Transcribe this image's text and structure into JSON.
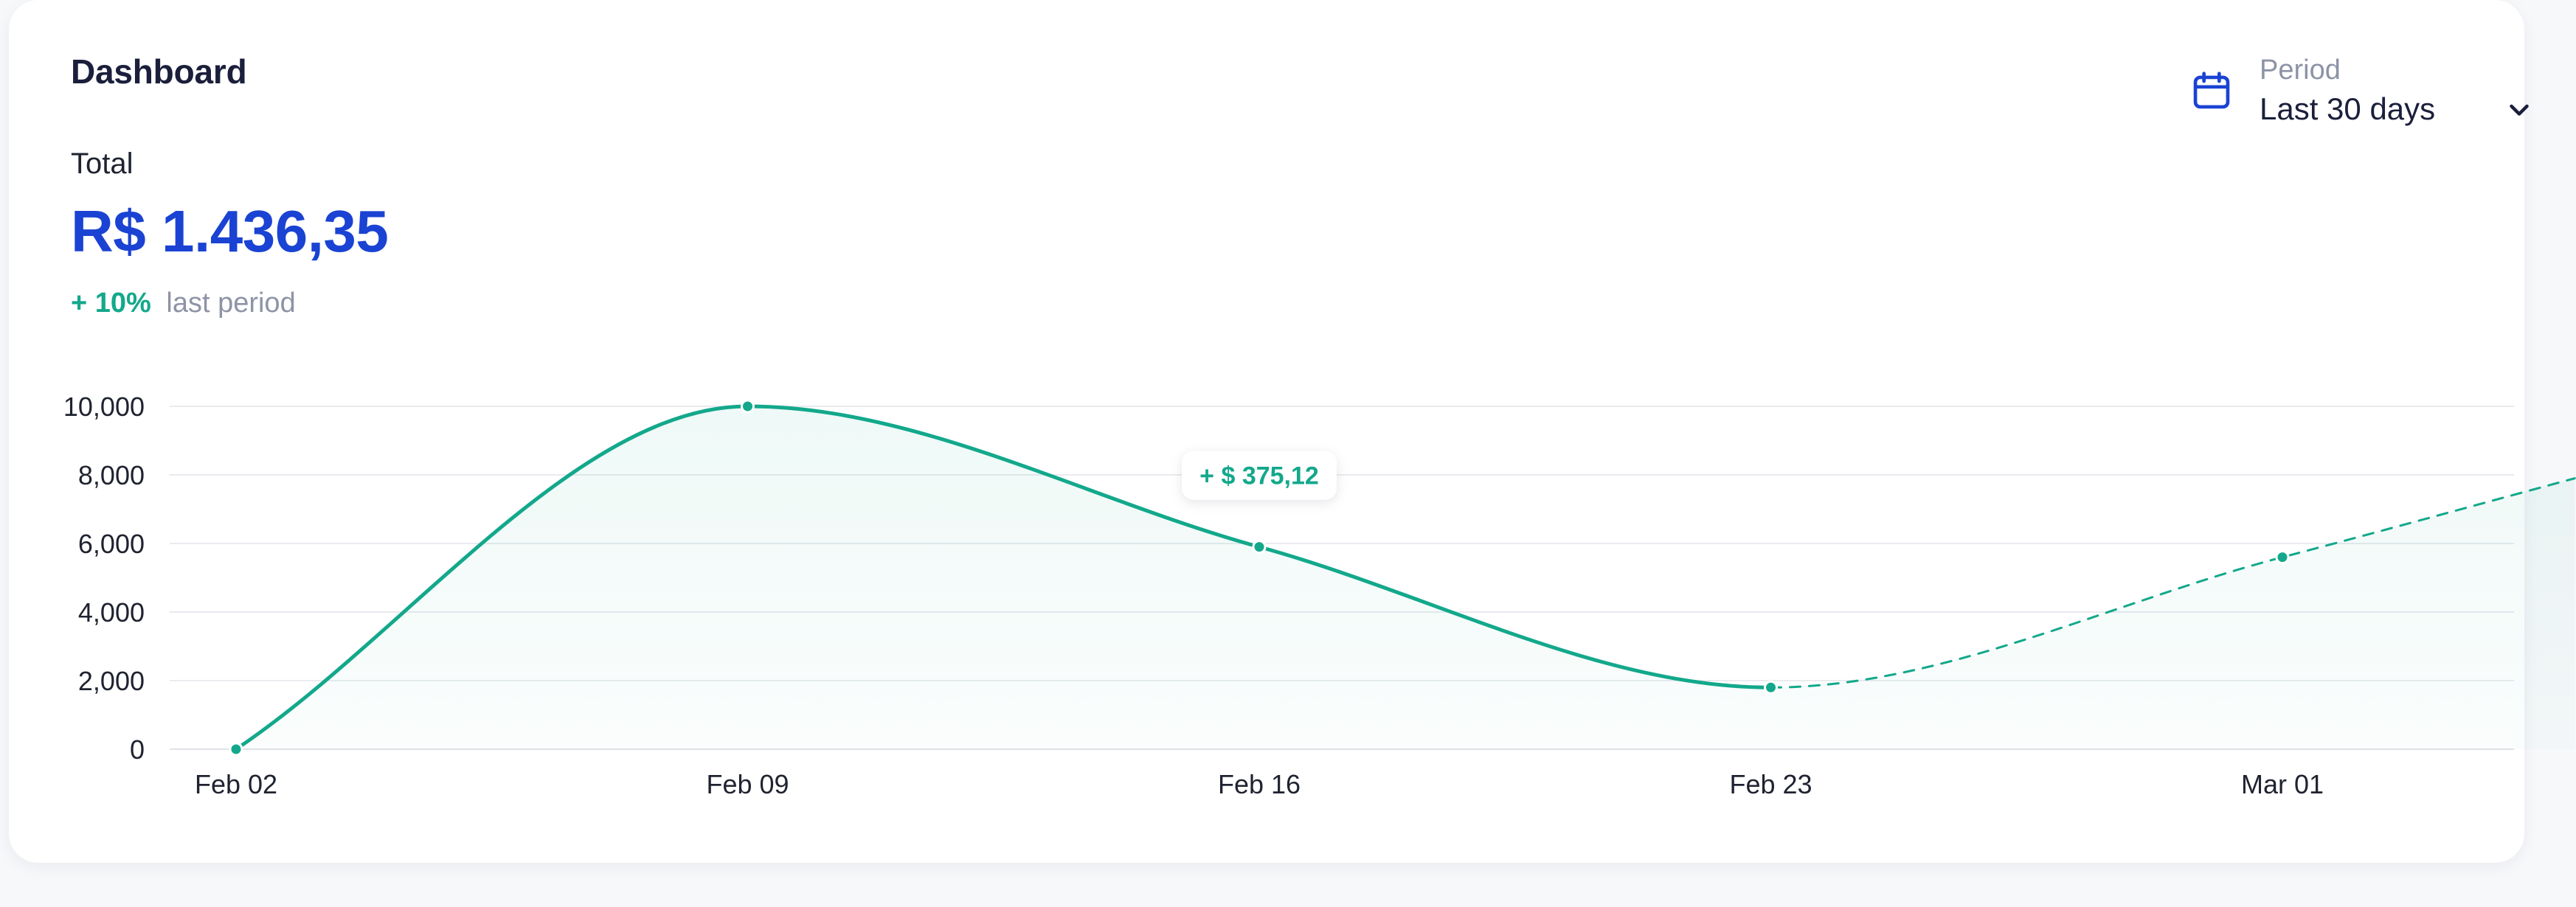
{
  "header": {
    "title": "Dashboard"
  },
  "summary": {
    "total_label": "Total",
    "total_value": "R$ 1.436,35",
    "delta_pct": "+ 10%",
    "delta_text": "last period"
  },
  "period": {
    "label": "Period",
    "value": "Last 30 days",
    "icon": "calendar-icon",
    "dropdown_icon": "chevron-down-icon"
  },
  "colors": {
    "accent_blue": "#1a43d3",
    "line_teal": "#13a88b",
    "grid": "#e9ebef"
  },
  "chart_data": {
    "type": "line",
    "x": [
      "Feb 02",
      "Feb 09",
      "Feb 16",
      "Feb 23",
      "Mar 01"
    ],
    "yticks": [
      "0",
      "2,000",
      "4,000",
      "6,000",
      "8,000",
      "10,000"
    ],
    "ylim": [
      0,
      10000
    ],
    "grid": true,
    "series": [
      {
        "style": "solid",
        "points": [
          {
            "x": "Feb 02",
            "y": 0
          },
          {
            "x": "Feb 09",
            "y": 10000
          },
          {
            "x": "Feb 16",
            "y": 5900
          },
          {
            "x": "Feb 23",
            "y": 1800
          }
        ]
      },
      {
        "style": "dashed",
        "points": [
          {
            "x": "Feb 23",
            "y": 1800
          },
          {
            "x": "Mar 01",
            "y": 5600
          },
          {
            "x": "Mar 05",
            "y": 7900
          }
        ]
      }
    ],
    "annotation": {
      "x": "Feb 16",
      "y": 5900,
      "text": "+ $ 375,12"
    }
  }
}
